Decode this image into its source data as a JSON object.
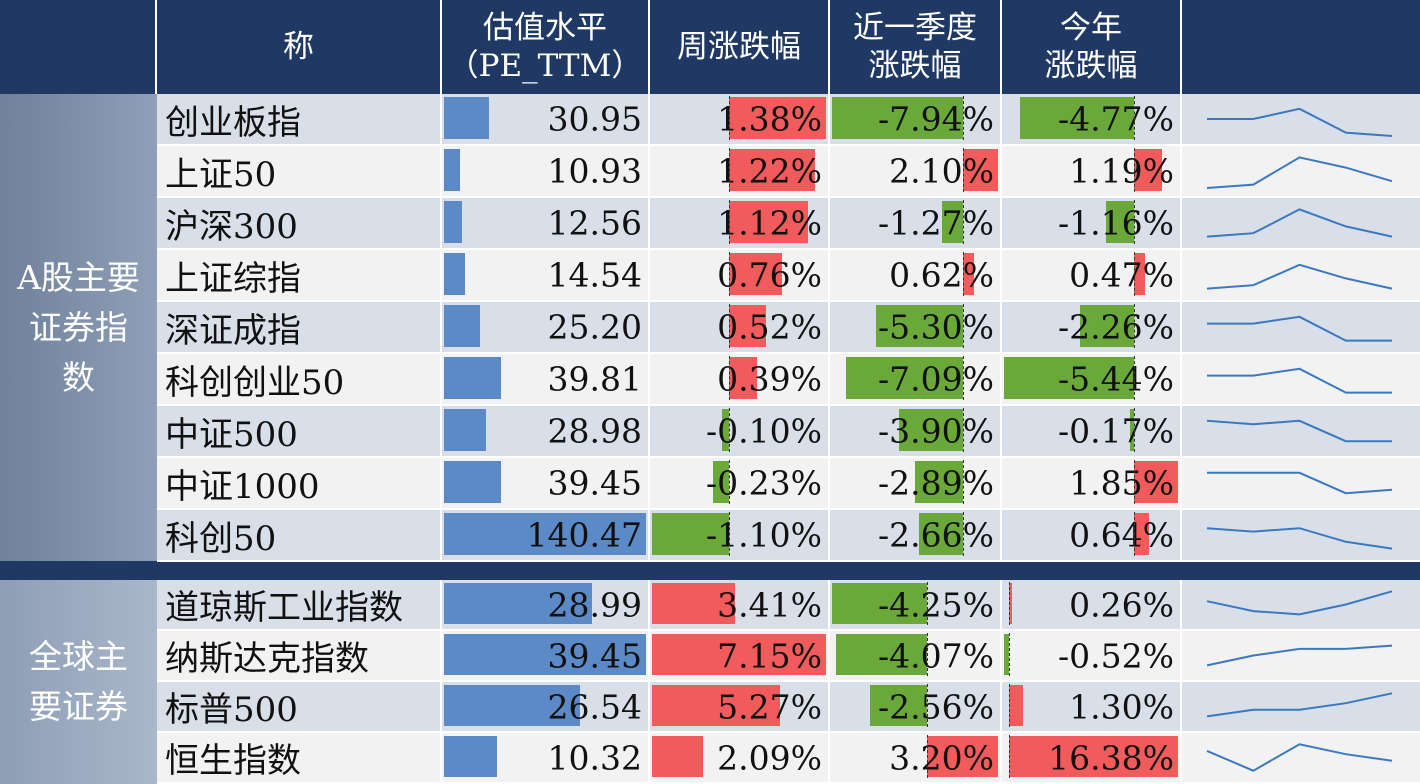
{
  "header": {
    "col0": "",
    "col_name": "称",
    "col_pe": [
      "估值水平",
      "（PE_TTM）"
    ],
    "col_week": "周涨跌幅",
    "col_quarter": [
      "近一季度",
      "涨跌幅"
    ],
    "col_ytd": [
      "今年",
      "涨跌幅"
    ],
    "col_trend": ""
  },
  "groups": [
    {
      "label": [
        "A股主要",
        "证券指",
        "数"
      ]
    },
    {
      "label": [
        "全球主",
        "要证券"
      ]
    }
  ],
  "colors": {
    "header_bg": "#1f3864",
    "pe_bar": "#5b8ac6",
    "positive": "#f25b5b",
    "negative": "#6ba83a",
    "spark_line": "#3b78c2",
    "row_dark": "#d9dfe8",
    "row_light": "#f2f2f2"
  },
  "rows_a": [
    {
      "name": "创业板指",
      "pe": "30.95",
      "pe_v": 30.95,
      "week": "1.38%",
      "week_v": 1.38,
      "q": "-7.94%",
      "q_v": -7.94,
      "ytd": "-4.77%",
      "ytd_v": -4.77,
      "trend": [
        5,
        5,
        2,
        9,
        10
      ]
    },
    {
      "name": "上证50",
      "pe": "10.93",
      "pe_v": 10.93,
      "week": "1.22%",
      "week_v": 1.22,
      "q": "2.10%",
      "q_v": 2.1,
      "ytd": "1.19%",
      "ytd_v": 1.19,
      "trend": [
        10,
        9,
        1,
        4,
        8
      ]
    },
    {
      "name": "沪深300",
      "pe": "12.56",
      "pe_v": 12.56,
      "week": "1.12%",
      "week_v": 1.12,
      "q": "-1.27%",
      "q_v": -1.27,
      "ytd": "-1.16%",
      "ytd_v": -1.16,
      "trend": [
        9,
        8,
        1,
        6,
        9
      ]
    },
    {
      "name": "上证综指",
      "pe": "14.54",
      "pe_v": 14.54,
      "week": "0.76%",
      "week_v": 0.76,
      "q": "0.62%",
      "q_v": 0.62,
      "ytd": "0.47%",
      "ytd_v": 0.47,
      "trend": [
        9,
        8,
        2,
        6,
        9
      ]
    },
    {
      "name": "深证成指",
      "pe": "25.20",
      "pe_v": 25.2,
      "week": "0.52%",
      "week_v": 0.52,
      "q": "-5.30%",
      "q_v": -5.3,
      "ytd": "-2.26%",
      "ytd_v": -2.26,
      "trend": [
        4,
        4,
        2,
        9,
        9
      ]
    },
    {
      "name": "科创创业50",
      "pe": "39.81",
      "pe_v": 39.81,
      "week": "0.39%",
      "week_v": 0.39,
      "q": "-7.09%",
      "q_v": -7.09,
      "ytd": "-5.44%",
      "ytd_v": -5.44,
      "trend": [
        4,
        4,
        2,
        9,
        9
      ]
    },
    {
      "name": "中证500",
      "pe": "28.98",
      "pe_v": 28.98,
      "week": "-0.10%",
      "week_v": -0.1,
      "q": "-3.90%",
      "q_v": -3.9,
      "ytd": "-0.17%",
      "ytd_v": -0.17,
      "trend": [
        2,
        3,
        2,
        8,
        8
      ]
    },
    {
      "name": "中证1000",
      "pe": "39.45",
      "pe_v": 39.45,
      "week": "-0.23%",
      "week_v": -0.23,
      "q": "-2.89%",
      "q_v": -2.89,
      "ytd": "1.85%",
      "ytd_v": 1.85,
      "trend": [
        2,
        2,
        2,
        8,
        7
      ]
    },
    {
      "name": "科创50",
      "pe": "140.47",
      "pe_v": 140.47,
      "week": "-1.10%",
      "week_v": -1.1,
      "q": "-2.66%",
      "q_v": -2.66,
      "ytd": "0.64%",
      "ytd_v": 0.64,
      "trend": [
        3,
        4,
        3,
        7,
        9
      ]
    }
  ],
  "rows_b": [
    {
      "name": "道琼斯工业指数",
      "pe": "28.99",
      "pe_v": 28.99,
      "week": "3.41%",
      "week_v": 3.41,
      "q": "-4.25%",
      "q_v": -4.25,
      "ytd": "0.26%",
      "ytd_v": 0.26,
      "trend": [
        4,
        7,
        8,
        5,
        1
      ]
    },
    {
      "name": "纳斯达克指数",
      "pe": "39.45",
      "pe_v": 39.45,
      "week": "7.15%",
      "week_v": 7.15,
      "q": "-4.07%",
      "q_v": -4.07,
      "ytd": "-0.52%",
      "ytd_v": -0.52,
      "trend": [
        8,
        5,
        3,
        3,
        2
      ]
    },
    {
      "name": "标普500",
      "pe": "26.54",
      "pe_v": 26.54,
      "week": "5.27%",
      "week_v": 5.27,
      "q": "-2.56%",
      "q_v": -2.56,
      "ytd": "1.30%",
      "ytd_v": 1.3,
      "trend": [
        8,
        6,
        6,
        4,
        1
      ]
    },
    {
      "name": "恒生指数",
      "pe": "10.32",
      "pe_v": 10.32,
      "week": "2.09%",
      "week_v": 2.09,
      "q": "3.20%",
      "q_v": 3.2,
      "ytd": "16.38%",
      "ytd_v": 16.38,
      "trend": [
        3,
        9,
        1,
        4,
        6
      ]
    }
  ]
}
